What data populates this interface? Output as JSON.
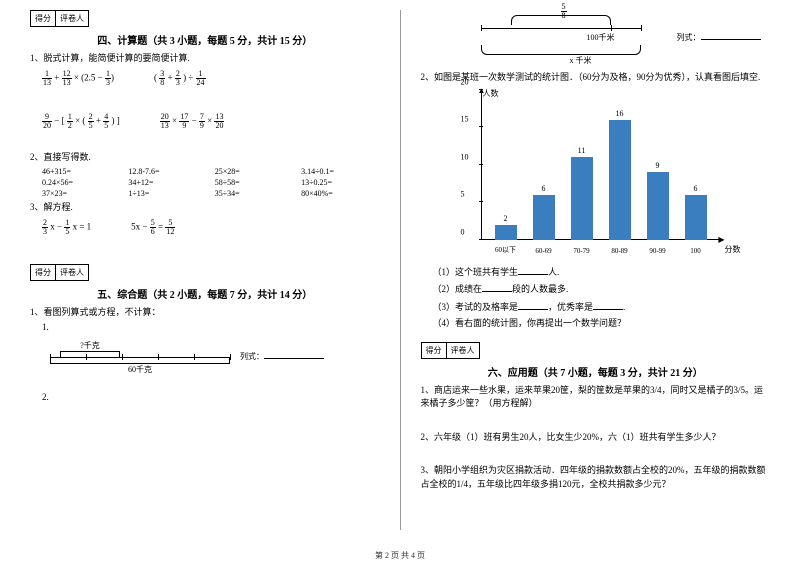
{
  "scorebox": {
    "col1": "得分",
    "col2": "评卷人"
  },
  "section4": {
    "title": "四、计算题（共 3 小题，每题 5 分，共计 15 分）",
    "q1": "1、脱式计算，能简便计算的要简便计算.",
    "e1a": "1/13 + 12/13 × (2.5 − 1/3)",
    "e1b": "( 3/8 + 2/3 ) ÷ 1/24",
    "e1c": "9/20 − [ 1/2 × ( 2/5 + 4/5 ) ]",
    "e1d": "20/13 × 17/9 − 7/9 × 13/20",
    "q2": "2、直接写得数.",
    "calc": [
      "46+315=",
      "12.8-7.6=",
      "25×28=",
      "3.14÷0.1=",
      "0.24×56=",
      "34+12=",
      "58÷58=",
      "13÷0.25=",
      "37×23=",
      "1÷13=",
      "35÷34=",
      "80×40%="
    ],
    "q3": "3、解方程.",
    "e3a": "2/3 x − 1/5 x = 1",
    "e3b": "5x − 5/6 = 5/12"
  },
  "section5": {
    "title": "五、综合题（共 2 小题，每题 7 分，共计 14 分）",
    "q1": "1、看图列算式或方程，不计算：",
    "label_qkg": "?千克",
    "label_60kg": "60千克",
    "lieshi": "列式：",
    "num1": "1.",
    "num2": "2."
  },
  "right": {
    "frac58": "5/8",
    "km100": "100千米",
    "xkm": "x 千米",
    "lieshi": "列式：",
    "q2_intro": "2、如图是某班一次数学测试的统计图．（60分为及格，90分为优秀），认真看图后填空.",
    "chart": {
      "y_title": "人数",
      "x_title": "分数",
      "y_max": 20,
      "y_step": 5,
      "y_ticks": [
        0,
        5,
        10,
        15,
        20
      ],
      "bars": [
        {
          "label": "60以下",
          "value": 2
        },
        {
          "label": "60-69",
          "value": 6
        },
        {
          "label": "70-79",
          "value": 11
        },
        {
          "label": "80-89",
          "value": 16
        },
        {
          "label": "90-99",
          "value": 9
        },
        {
          "label": "100",
          "value": 6
        }
      ],
      "bar_color": "#3b7ec0"
    },
    "sub1": "（1）这个班共有学生",
    "sub1b": "人.",
    "sub2": "（2）成绩在",
    "sub2b": "段的人数最多.",
    "sub3": "（3）考试的及格率是",
    "sub3b": "，优秀率是",
    "sub3c": ".",
    "sub4": "（4）看右面的统计图，你再提出一个数学问题？"
  },
  "section6": {
    "title": "六、应用题（共 7 小题，每题 3 分，共计 21 分）",
    "q1": "1、商店运来一些水果，运来苹果20筐，梨的筐数是苹果的3/4，同时又是橘子的3/5。运来橘子多少筐？（用方程解）",
    "q2": "2、六年级（1）班有男生20人，比女生少20%，六（1）班共有学生多少人？",
    "q3": "3、朝阳小学组织为灾区捐款活动．四年级的捐款数额占全校的20%，五年级的捐款数额占全校的1/4，五年级比四年级多捐120元，全校共捐款多少元？"
  },
  "footer": "第 2 页 共 4 页"
}
